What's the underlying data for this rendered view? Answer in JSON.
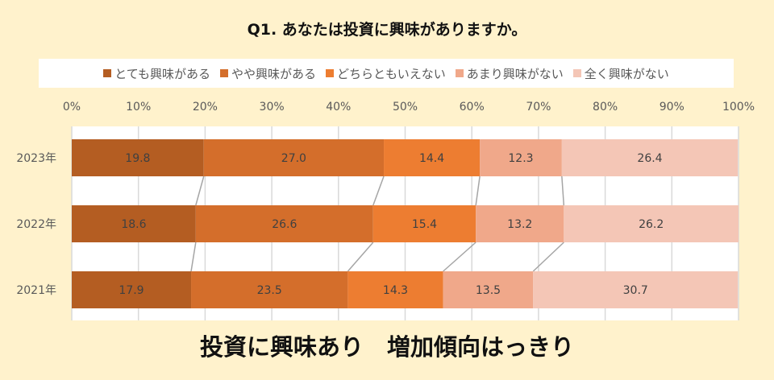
{
  "chart_data": {
    "type": "bar",
    "orientation": "horizontal-stacked-100",
    "title": "Q1. あなたは投資に興味がありますか。",
    "categories": [
      "2023年",
      "2022年",
      "2021年"
    ],
    "series": [
      {
        "name": "とても興味がある",
        "color": "#B45D22",
        "values": [
          19.8,
          18.6,
          17.9
        ]
      },
      {
        "name": "やや興味がある",
        "color": "#D46E2B",
        "values": [
          27.0,
          26.6,
          23.5
        ]
      },
      {
        "name": "どちらともいえない",
        "color": "#ED7D31",
        "values": [
          14.4,
          15.4,
          14.3
        ]
      },
      {
        "name": "あまり興味がない",
        "color": "#F0A88A",
        "values": [
          12.3,
          13.2,
          13.5
        ]
      },
      {
        "name": "全く興味がない",
        "color": "#F4C6B6",
        "values": [
          26.4,
          26.2,
          30.7
        ]
      }
    ],
    "xticks": [
      "0%",
      "10%",
      "20%",
      "30%",
      "40%",
      "50%",
      "60%",
      "70%",
      "80%",
      "90%",
      "100%"
    ],
    "xlim": [
      0,
      100
    ],
    "grid": true,
    "legend": "top",
    "caption": "投資に興味あり　増加傾向はっきり"
  }
}
